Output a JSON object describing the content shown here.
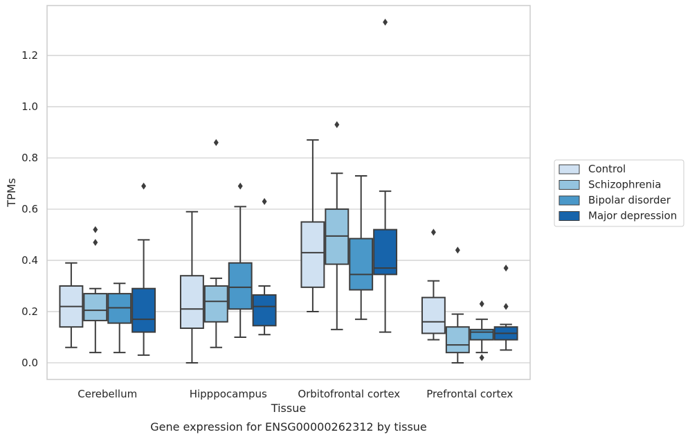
{
  "chart_data": {
    "type": "box",
    "caption": "Gene expression for ENSG00000262312 by tissue",
    "xlabel": "Tissue",
    "ylabel": "TPMs",
    "ylim": [
      -0.065,
      1.395
    ],
    "yticks": [
      0.0,
      0.2,
      0.4,
      0.6,
      0.8,
      1.0,
      1.2
    ],
    "ytick_labels": [
      "0.0",
      "0.2",
      "0.4",
      "0.6",
      "0.8",
      "1.0",
      "1.2"
    ],
    "grid": true,
    "legend_position": "right",
    "categories": [
      "Cerebellum",
      "Hipppocampus",
      "Orbitofrontal cortex",
      "Prefrontal cortex"
    ],
    "series": [
      {
        "name": "Control",
        "color": "#d0e1f2",
        "boxes": [
          {
            "whisker_low": 0.06,
            "q1": 0.14,
            "median": 0.22,
            "q3": 0.3,
            "whisker_high": 0.39,
            "outliers": []
          },
          {
            "whisker_low": 0.0,
            "q1": 0.135,
            "median": 0.21,
            "q3": 0.34,
            "whisker_high": 0.59,
            "outliers": []
          },
          {
            "whisker_low": 0.2,
            "q1": 0.295,
            "median": 0.43,
            "q3": 0.55,
            "whisker_high": 0.87,
            "outliers": []
          },
          {
            "whisker_low": 0.09,
            "q1": 0.115,
            "median": 0.16,
            "q3": 0.255,
            "whisker_high": 0.32,
            "outliers": [
              0.51
            ]
          }
        ]
      },
      {
        "name": "Schizophrenia",
        "color": "#94c4df",
        "boxes": [
          {
            "whisker_low": 0.04,
            "q1": 0.165,
            "median": 0.205,
            "q3": 0.27,
            "whisker_high": 0.29,
            "outliers": [
              0.47,
              0.52
            ]
          },
          {
            "whisker_low": 0.06,
            "q1": 0.16,
            "median": 0.24,
            "q3": 0.3,
            "whisker_high": 0.33,
            "outliers": [
              0.86
            ]
          },
          {
            "whisker_low": 0.13,
            "q1": 0.385,
            "median": 0.495,
            "q3": 0.6,
            "whisker_high": 0.74,
            "outliers": [
              0.93
            ]
          },
          {
            "whisker_low": 0.0,
            "q1": 0.04,
            "median": 0.07,
            "q3": 0.14,
            "whisker_high": 0.19,
            "outliers": [
              0.44
            ]
          }
        ]
      },
      {
        "name": "Bipolar disorder",
        "color": "#4a98c9",
        "boxes": [
          {
            "whisker_low": 0.04,
            "q1": 0.155,
            "median": 0.215,
            "q3": 0.27,
            "whisker_high": 0.31,
            "outliers": []
          },
          {
            "whisker_low": 0.1,
            "q1": 0.21,
            "median": 0.295,
            "q3": 0.39,
            "whisker_high": 0.61,
            "outliers": [
              0.69
            ]
          },
          {
            "whisker_low": 0.17,
            "q1": 0.285,
            "median": 0.345,
            "q3": 0.485,
            "whisker_high": 0.73,
            "outliers": []
          },
          {
            "whisker_low": 0.04,
            "q1": 0.09,
            "median": 0.12,
            "q3": 0.13,
            "whisker_high": 0.17,
            "outliers": [
              0.02,
              0.23
            ]
          }
        ]
      },
      {
        "name": "Major depression",
        "color": "#1764ab",
        "boxes": [
          {
            "whisker_low": 0.03,
            "q1": 0.12,
            "median": 0.17,
            "q3": 0.29,
            "whisker_high": 0.48,
            "outliers": [
              0.69
            ]
          },
          {
            "whisker_low": 0.11,
            "q1": 0.145,
            "median": 0.22,
            "q3": 0.265,
            "whisker_high": 0.3,
            "outliers": [
              0.63
            ]
          },
          {
            "whisker_low": 0.12,
            "q1": 0.345,
            "median": 0.37,
            "q3": 0.52,
            "whisker_high": 0.67,
            "outliers": [
              1.33
            ]
          },
          {
            "whisker_low": 0.05,
            "q1": 0.09,
            "median": 0.115,
            "q3": 0.14,
            "whisker_high": 0.15,
            "outliers": [
              0.22,
              0.37
            ]
          }
        ]
      }
    ]
  }
}
